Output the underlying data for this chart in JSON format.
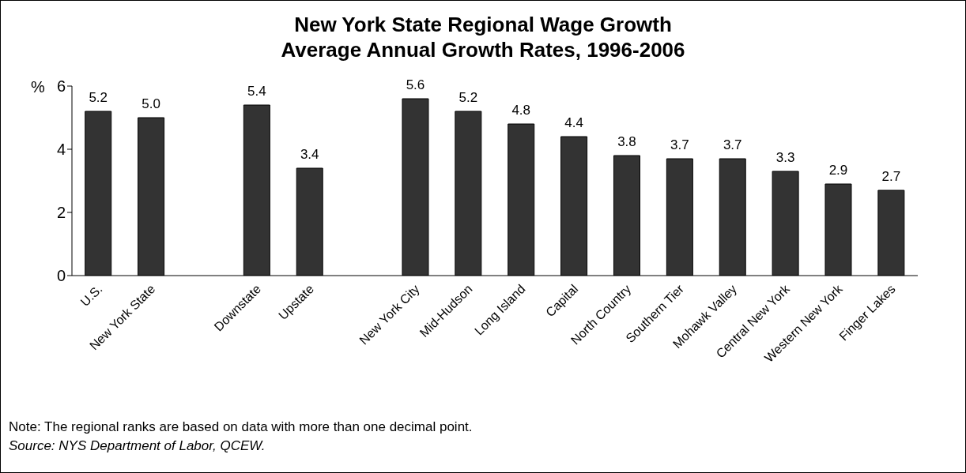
{
  "chart_data": {
    "type": "bar",
    "title": "New York State Regional Wage Growth\nAverage Annual Growth Rates, 1996-2006",
    "ylabel": "%",
    "categories": [
      "U.S.",
      "New York State",
      null,
      "Downstate",
      "Upstate",
      null,
      "New York City",
      "Mid-Hudson",
      "Long Island",
      "Capital",
      "North Country",
      "Southern Tier",
      "Mohawk Valley",
      "Central New York",
      "Western New York",
      "Finger Lakes"
    ],
    "values": [
      5.2,
      5.0,
      null,
      5.4,
      3.4,
      null,
      5.6,
      5.2,
      4.8,
      4.4,
      3.8,
      3.7,
      3.7,
      3.3,
      2.9,
      2.7
    ],
    "value_labels": [
      "5.2",
      "5.0",
      null,
      "5.4",
      "3.4",
      null,
      "5.6",
      "5.2",
      "4.8",
      "4.4",
      "3.8",
      "3.7",
      "3.7",
      "3.3",
      "2.9",
      "2.7"
    ],
    "color": "#333333",
    "ylim": [
      0,
      6
    ],
    "yticks": [
      0,
      2,
      4,
      6
    ],
    "grid": false,
    "annotations": [
      "Note: The regional ranks are based on data with more than one decimal point.",
      "Source: NYS Department of Labor, QCEW."
    ]
  }
}
